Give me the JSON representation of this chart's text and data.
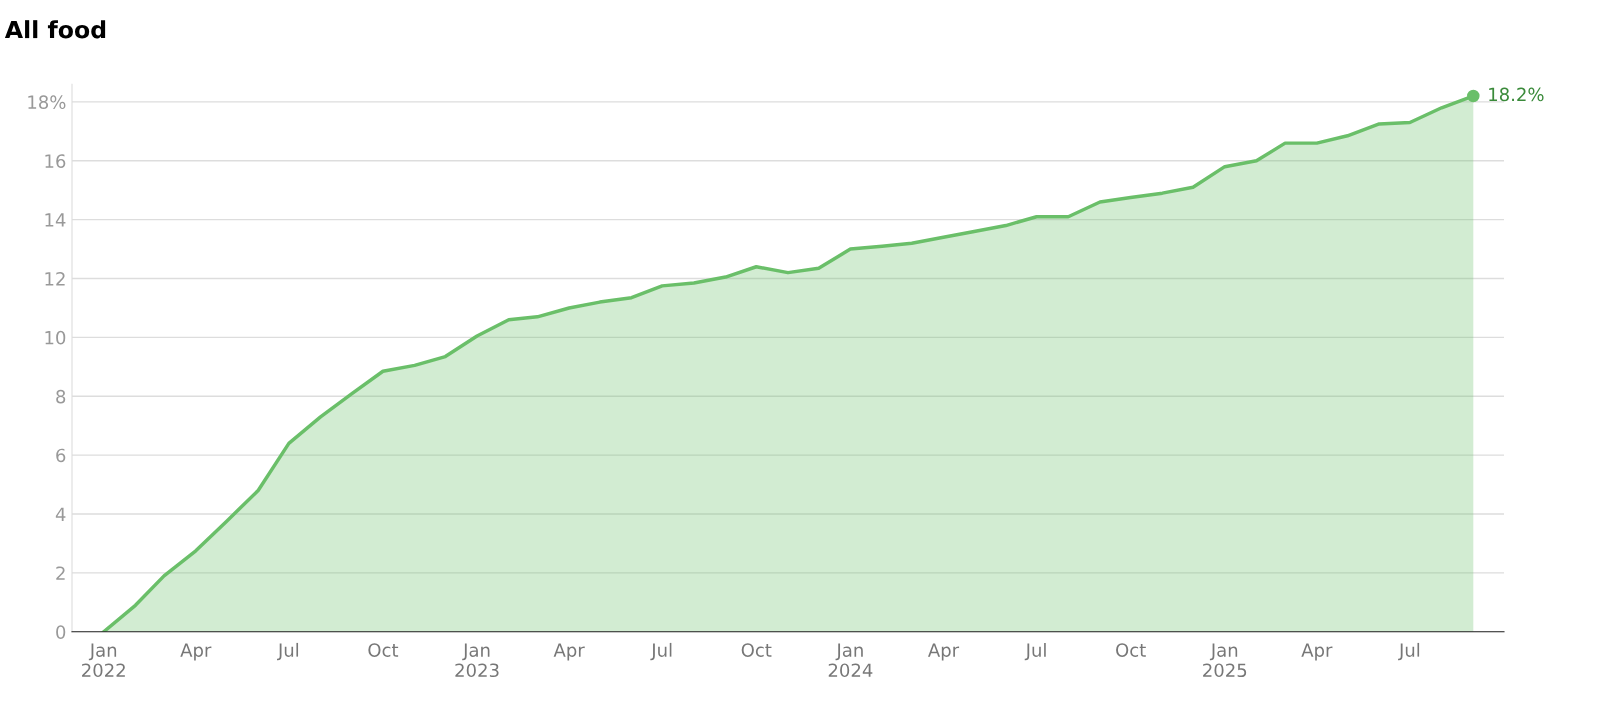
{
  "chart_data": {
    "type": "area",
    "title": "All food",
    "x": [
      "2022-01",
      "2022-02",
      "2022-03",
      "2022-04",
      "2022-05",
      "2022-06",
      "2022-07",
      "2022-08",
      "2022-09",
      "2022-10",
      "2022-11",
      "2022-12",
      "2023-01",
      "2023-02",
      "2023-03",
      "2023-04",
      "2023-05",
      "2023-06",
      "2023-07",
      "2023-08",
      "2023-09",
      "2023-10",
      "2023-11",
      "2023-12",
      "2024-01",
      "2024-02",
      "2024-03",
      "2024-04",
      "2024-05",
      "2024-06",
      "2024-07",
      "2024-08",
      "2024-09",
      "2024-10",
      "2024-11",
      "2024-12",
      "2025-01",
      "2025-02",
      "2025-03",
      "2025-04",
      "2025-05",
      "2025-06",
      "2025-07",
      "2025-08",
      "2025-09"
    ],
    "series": [
      {
        "color": "#6abf69",
        "values": [
          0,
          0.9,
          1.9,
          2.75,
          3.75,
          4.8,
          6.4,
          7.3,
          8.1,
          8.85,
          9.05,
          9.35,
          10.05,
          10.6,
          10.7,
          11.0,
          11.2,
          11.35,
          11.75,
          11.85,
          12.05,
          12.4,
          12.2,
          12.35,
          13.0,
          13.1,
          13.2,
          13.4,
          13.6,
          13.8,
          14.1,
          14.1,
          14.6,
          14.75,
          14.9,
          15.1,
          15.8,
          16.0,
          16.6,
          16.6,
          16.85,
          17.25,
          17.3,
          17.8,
          18.2
        ]
      }
    ],
    "annotations": [
      {
        "text": "18.2%",
        "x": "2025-09",
        "y": 18.2
      }
    ],
    "xlim": [
      "2021-12",
      "2025-10"
    ],
    "xticks": [
      {
        "value": "2022-01",
        "label": "Jan\n2022"
      },
      {
        "value": "2022-04",
        "label": "Apr"
      },
      {
        "value": "2022-07",
        "label": "Jul"
      },
      {
        "value": "2022-10",
        "label": "Oct"
      },
      {
        "value": "2023-01",
        "label": "Jan\n2023"
      },
      {
        "value": "2023-04",
        "label": "Apr"
      },
      {
        "value": "2023-07",
        "label": "Jul"
      },
      {
        "value": "2023-10",
        "label": "Oct"
      },
      {
        "value": "2024-01",
        "label": "Jan\n2024"
      },
      {
        "value": "2024-04",
        "label": "Apr"
      },
      {
        "value": "2024-07",
        "label": "Jul"
      },
      {
        "value": "2024-10",
        "label": "Oct"
      },
      {
        "value": "2025-01",
        "label": "Jan\n2025"
      },
      {
        "value": "2025-04",
        "label": "Apr"
      },
      {
        "value": "2025-07",
        "label": "Jul"
      }
    ],
    "ylim": [
      0,
      18.6
    ],
    "yticks": [
      0,
      2,
      4,
      6,
      8,
      10,
      12,
      14,
      16,
      {
        "value": 18,
        "label": "18%"
      }
    ],
    "grid": "y",
    "marker": "none",
    "line_style": "solid"
  }
}
